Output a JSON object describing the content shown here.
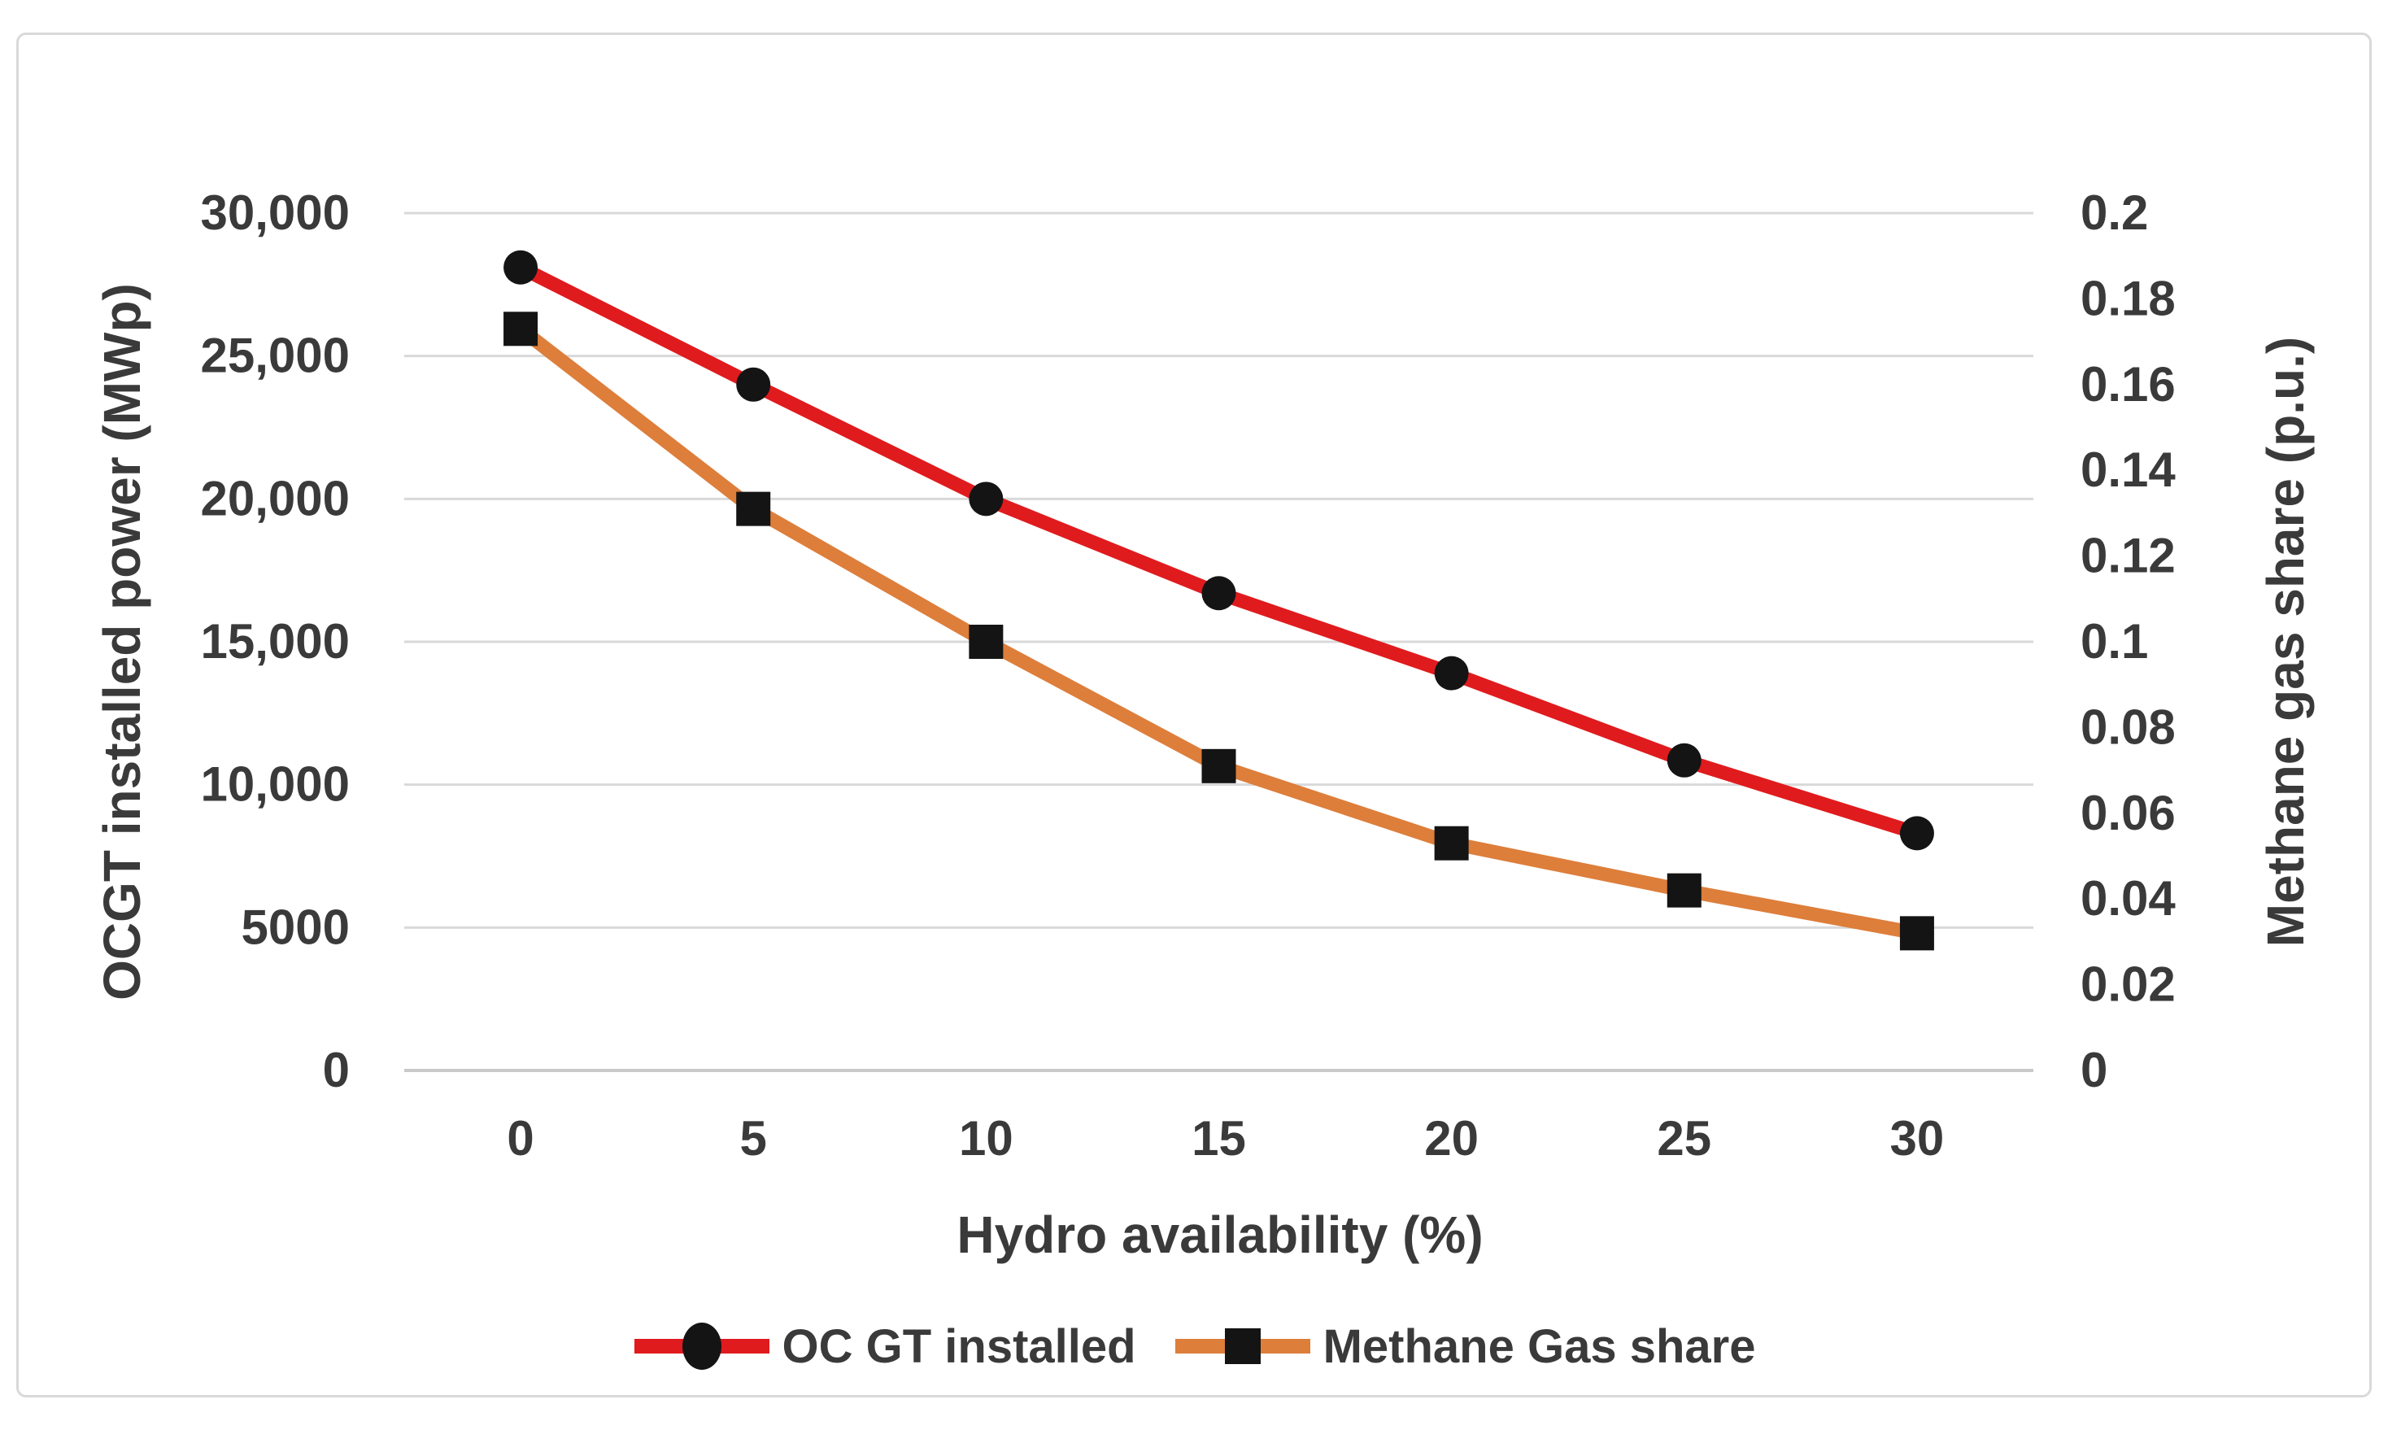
{
  "window": {
    "background_color": "#ffffff",
    "frame_border_color": "#d9d9d9"
  },
  "chart_data": {
    "type": "line",
    "title": "",
    "categories": [
      0,
      5,
      10,
      15,
      20,
      25,
      30
    ],
    "x_tick_labels": [
      "0",
      "5",
      "10",
      "15",
      "20",
      "25",
      "30"
    ],
    "xlabel": "Hydro availability (%)",
    "grid": true,
    "legend_position": "bottom",
    "left_axis": {
      "title": "OCGT installed power (MWp)",
      "min": 0,
      "max": 30000,
      "tick_step": 5000,
      "tick_labels": [
        "0",
        "5000",
        "10,000",
        "15,000",
        "20,000",
        "25,000",
        "30,000"
      ]
    },
    "right_axis": {
      "title": "Methane gas share (p.u.)",
      "min": 0,
      "max": 0.2,
      "tick_step": 0.02,
      "tick_labels": [
        "0",
        "0.02",
        "0.04",
        "0.06",
        "0.08",
        "0.1",
        "0.12",
        "0.14",
        "0.16",
        "0.18",
        "0.2"
      ]
    },
    "series": [
      {
        "name": "OC GT installed",
        "axis": "left",
        "line_color": "#e01b1e",
        "marker": "circle",
        "marker_color": "#141414",
        "values": [
          28100,
          24000,
          20000,
          16700,
          13900,
          10850,
          8300
        ]
      },
      {
        "name": "Methane Gas share",
        "axis": "right",
        "line_color": "#dd7e3b",
        "marker": "square",
        "marker_color": "#141414",
        "values": [
          0.173,
          0.131,
          0.1,
          0.071,
          0.053,
          0.042,
          0.032
        ]
      }
    ],
    "colors": {
      "gridline": "#d9d9d9",
      "baseline": "#c9c9c9",
      "text": "#3a3a3a"
    }
  }
}
